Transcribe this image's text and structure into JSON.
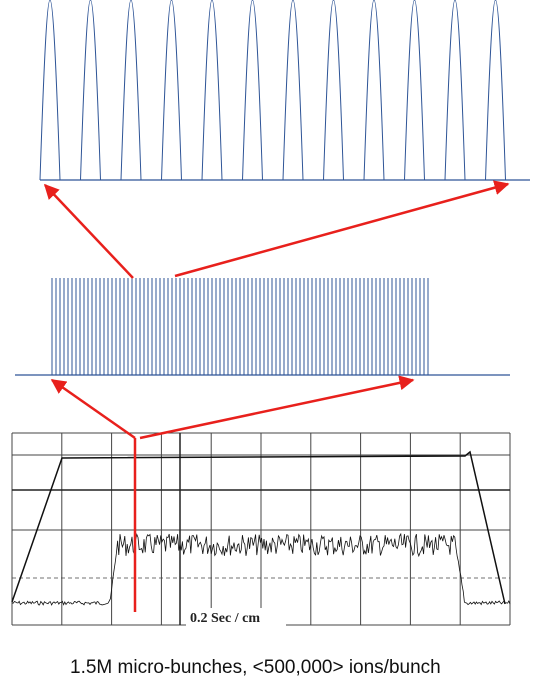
{
  "scope_label": "0.2 Sec / cm",
  "caption": "1.5M micro-bunches, <500,000> ions/bunch"
}
